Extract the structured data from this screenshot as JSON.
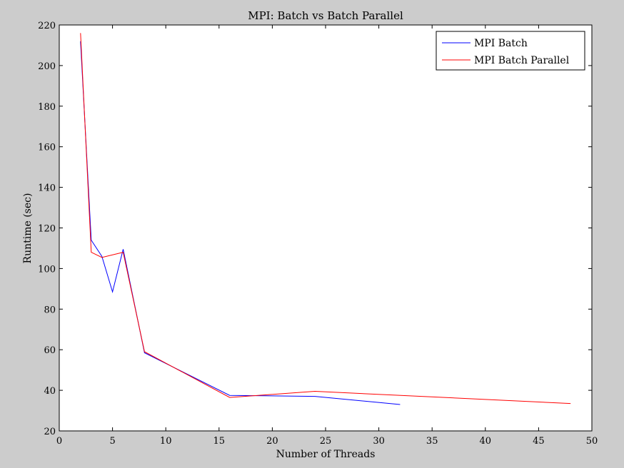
{
  "chart_data": {
    "type": "line",
    "title": "MPI: Batch vs Batch Parallel",
    "xlabel": "Number of Threads",
    "ylabel": "Runtime (sec)",
    "xlim": [
      0,
      50
    ],
    "ylim": [
      20,
      220
    ],
    "xticks": [
      0,
      5,
      10,
      15,
      20,
      25,
      30,
      35,
      40,
      45,
      50
    ],
    "yticks": [
      20,
      40,
      60,
      80,
      100,
      120,
      140,
      160,
      180,
      200,
      220
    ],
    "grid": false,
    "legend_position": "top-right",
    "series": [
      {
        "name": "MPI Batch",
        "color": "#0000ff",
        "x": [
          2,
          3,
          4,
          5,
          6,
          8,
          16,
          24,
          32
        ],
        "y": [
          212,
          114,
          106,
          88.5,
          109.5,
          58.5,
          37.5,
          37,
          33
        ]
      },
      {
        "name": "MPI Batch Parallel",
        "color": "#ff0000",
        "x": [
          2,
          3,
          4,
          6,
          8,
          16,
          24,
          48
        ],
        "y": [
          216,
          108,
          105.5,
          108,
          59,
          36.5,
          39.5,
          33.5
        ]
      }
    ]
  }
}
